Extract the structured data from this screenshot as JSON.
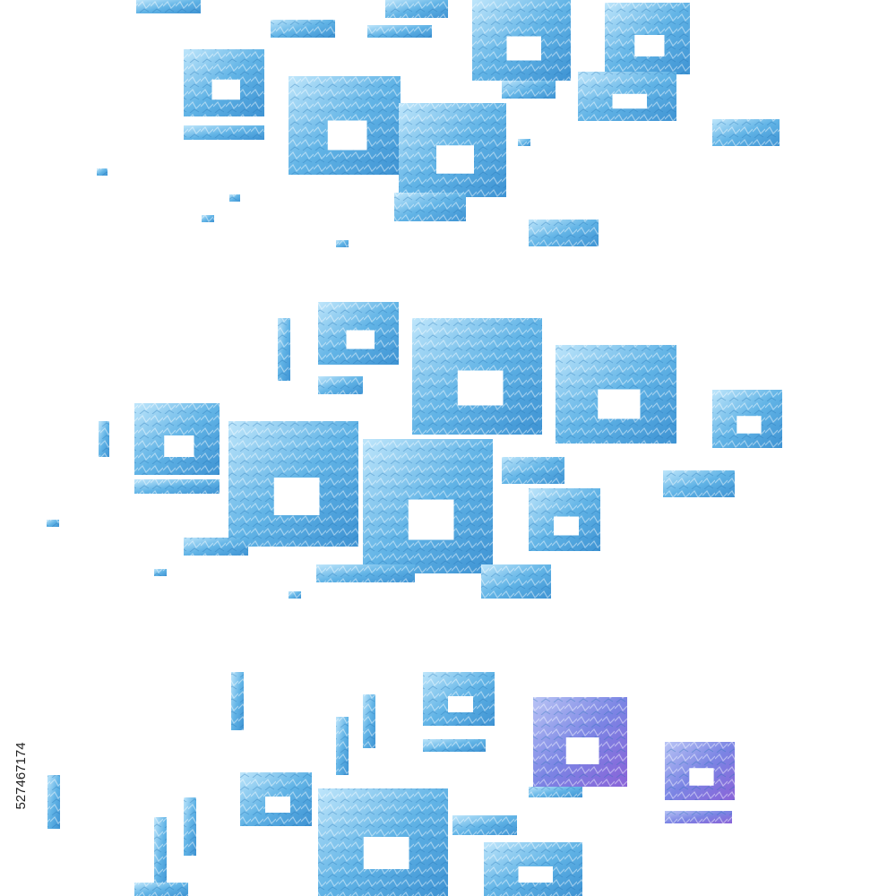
{
  "image": {
    "id": "527467174"
  }
}
